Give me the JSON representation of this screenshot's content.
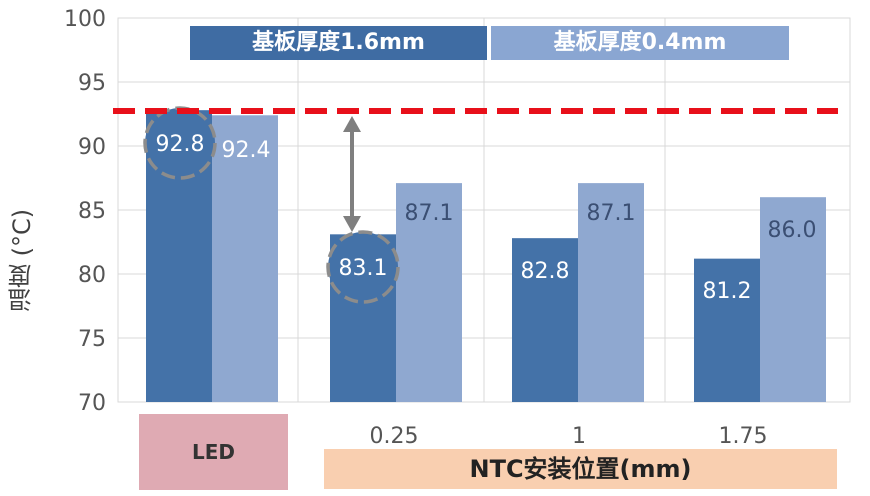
{
  "chart_data": {
    "type": "bar",
    "ylabel": "温度 (°C)",
    "ylim": [
      70,
      100
    ],
    "yticks": [
      70,
      75,
      80,
      85,
      90,
      95,
      100
    ],
    "grid": true,
    "categories": [
      "LED",
      "0.25",
      "1",
      "1.75"
    ],
    "series": [
      {
        "name": "基板厚度1.6mm",
        "color": "#4472a8",
        "values": [
          92.8,
          83.1,
          82.8,
          81.2
        ]
      },
      {
        "name": "基板厚度0.4mm",
        "color": "#8fa8d0",
        "values": [
          92.4,
          87.1,
          87.1,
          86.0
        ]
      }
    ],
    "value_labels_1": [
      "92.8",
      "83.1",
      "82.8",
      "81.2"
    ],
    "value_labels_2": [
      "92.4",
      "87.1",
      "87.1",
      "86.0"
    ],
    "reference_line": {
      "value": 92.8,
      "color": "#e8101a",
      "style": "dashed"
    },
    "xlabel": "NTC安装位置(mm)",
    "legend_placement": "top-center"
  }
}
